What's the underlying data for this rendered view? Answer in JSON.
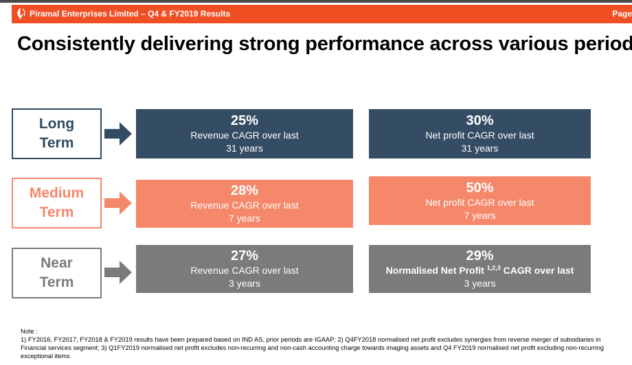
{
  "header": {
    "title": "Piramal Enterprises Limited – Q4 & FY2019 Results",
    "page_label": "Page"
  },
  "page_title": "Consistently delivering strong performance across various periods",
  "rows": [
    {
      "label_line1": "Long",
      "label_line2": "Term",
      "revenue": {
        "value": "25%",
        "desc": "Revenue CAGR over last",
        "period": "31 years"
      },
      "profit": {
        "value": "30%",
        "desc": "Net profit CAGR over last",
        "period": "31 years"
      }
    },
    {
      "label_line1": "Medium",
      "label_line2": "Term",
      "revenue": {
        "value": "28%",
        "desc": "Revenue CAGR over last",
        "period": "7 years"
      },
      "profit": {
        "value": "50%",
        "desc": "Net profit CAGR over last",
        "period": "7 years"
      }
    },
    {
      "label_line1": "Near",
      "label_line2": "Term",
      "revenue": {
        "value": "27%",
        "desc": "Revenue CAGR over last",
        "period": "3 years"
      },
      "profit": {
        "value": "29%",
        "desc_prefix": "Normalised Net Profit",
        "desc_sup": "1,2,3",
        "desc_suffix": "CAGR over last",
        "period": "3 years"
      }
    }
  ],
  "colors": {
    "header_orange": "#f04e23",
    "long_navy": "#354d64",
    "medium_salmon": "#f5876a",
    "near_grey": "#7b7b7b"
  },
  "icons": {
    "logo": "piramal-logo-icon",
    "arrow": "arrow-right-icon"
  },
  "note": {
    "heading": "Note :",
    "text": "1) FY2016, FY2017, FY2018 & FY2019 results have been prepared based on IND AS, prior periods are IGAAP;  2)  Q4FY2018 normalised net profit excludes synergies from reverse merger of subsidiaries in Financial services segment;   3)   Q1FY2019 normalised net profit excludes non-recurring and non-cash accounting charge towards imaging assets and Q4 FY2019 normalised net profit excluding non-recurring exceptional items"
  }
}
